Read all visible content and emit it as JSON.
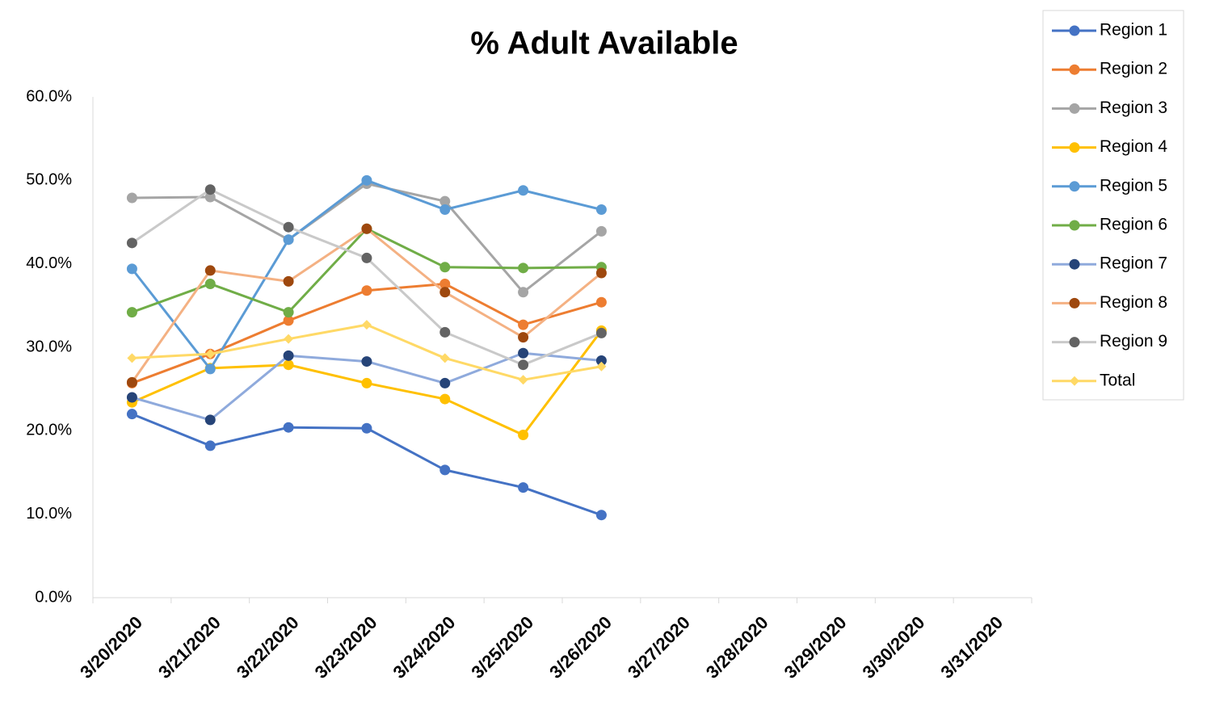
{
  "chart_data": {
    "type": "line",
    "title": "% Adult Available",
    "categories": [
      "3/20/2020",
      "3/21/2020",
      "3/22/2020",
      "3/23/2020",
      "3/24/2020",
      "3/25/2020",
      "3/26/2020",
      "3/27/2020",
      "3/28/2020",
      "3/29/2020",
      "3/30/2020",
      "3/31/2020"
    ],
    "ylim": [
      0,
      60
    ],
    "yticks": [
      {
        "value": 0,
        "label": "0.0%"
      },
      {
        "value": 10,
        "label": "10.0%"
      },
      {
        "value": 20,
        "label": "20.0%"
      },
      {
        "value": 30,
        "label": "30.0%"
      },
      {
        "value": 40,
        "label": "40.0%"
      },
      {
        "value": 50,
        "label": "50.0%"
      },
      {
        "value": 60,
        "label": "60.0%"
      }
    ],
    "grid": false,
    "legend": "right",
    "series": [
      {
        "name": "Region 1",
        "color": "#4472c4",
        "values": [
          22.0,
          18.2,
          20.4,
          20.3,
          15.3,
          13.2,
          9.9,
          null,
          null,
          null,
          null,
          null
        ]
      },
      {
        "name": "Region 2",
        "color": "#ed7d31",
        "values": [
          25.7,
          29.2,
          33.2,
          36.8,
          37.6,
          32.7,
          35.4,
          null,
          null,
          null,
          null,
          null
        ]
      },
      {
        "name": "Region 3",
        "color": "#a5a5a5",
        "values": [
          47.9,
          48.0,
          42.9,
          49.6,
          47.5,
          36.6,
          43.9,
          null,
          null,
          null,
          null,
          null
        ]
      },
      {
        "name": "Region 4",
        "color": "#ffc000",
        "values": [
          23.4,
          27.5,
          27.9,
          25.7,
          23.8,
          19.5,
          32.0,
          null,
          null,
          null,
          null,
          null
        ]
      },
      {
        "name": "Region 5",
        "color": "#5b9bd5",
        "values": [
          39.4,
          27.4,
          42.9,
          50.0,
          46.5,
          48.8,
          46.5,
          null,
          null,
          null,
          null,
          null
        ]
      },
      {
        "name": "Region 6",
        "color": "#70ad47",
        "values": [
          34.2,
          37.6,
          34.2,
          44.2,
          39.6,
          39.5,
          39.6,
          null,
          null,
          null,
          null,
          null
        ]
      },
      {
        "name": "Region 7",
        "color": "#8faadc",
        "marker_color": "#264478",
        "values": [
          24.0,
          21.3,
          29.0,
          28.3,
          25.7,
          29.3,
          28.4,
          null,
          null,
          null,
          null,
          null
        ]
      },
      {
        "name": "Region 8",
        "color": "#f4b183",
        "marker_color": "#9e480e",
        "values": [
          25.8,
          39.2,
          37.9,
          44.2,
          36.6,
          31.2,
          38.9,
          null,
          null,
          null,
          null,
          null
        ]
      },
      {
        "name": "Region 9",
        "color": "#c9c9c9",
        "marker_color": "#636363",
        "values": [
          42.5,
          48.9,
          44.4,
          40.7,
          31.8,
          27.9,
          31.7,
          null,
          null,
          null,
          null,
          null
        ]
      },
      {
        "name": "Total",
        "color": "#ffd966",
        "marker": "diamond",
        "values": [
          28.7,
          29.2,
          31.0,
          32.7,
          28.7,
          26.1,
          27.7,
          null,
          null,
          null,
          null,
          null
        ]
      }
    ]
  }
}
